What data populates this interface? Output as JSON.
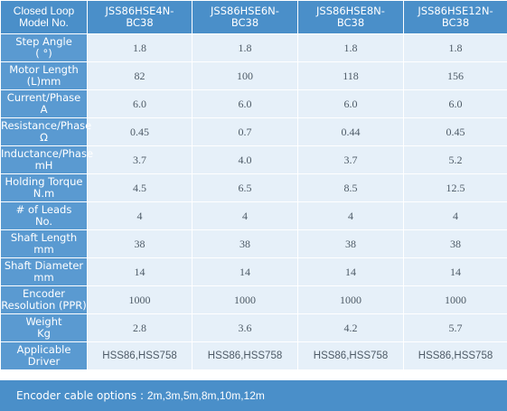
{
  "header": {
    "label_line1": "Closed Loop",
    "label_line2": "Model No.",
    "models": [
      {
        "line1": "JSS86HSE4N-",
        "line2": "BC38"
      },
      {
        "line1": "JSS86HSE6N-",
        "line2": "BC38"
      },
      {
        "line1": "JSS86HSE8N-",
        "line2": "BC38"
      },
      {
        "line1": "JSS86HSE12N-",
        "line2": "BC38"
      }
    ]
  },
  "rows": [
    {
      "label1": "Step Angle",
      "label2": "(     °)",
      "values": [
        "1.8",
        "1.8",
        "1.8",
        "1.8"
      ]
    },
    {
      "label1": "Motor Length",
      "label2": "(L)mm",
      "values": [
        "82",
        "100",
        "118",
        "156"
      ]
    },
    {
      "label1": "Current/Phase",
      "label2": "A",
      "values": [
        "6.0",
        "6.0",
        "6.0",
        "6.0"
      ]
    },
    {
      "label1": "Resistance/Phase",
      "label2": "Ω",
      "values": [
        "0.45",
        "0.7",
        "0.44",
        "0.45"
      ]
    },
    {
      "label1": "Inductance/Phase",
      "label2": "mH",
      "values": [
        "3.7",
        "4.0",
        "3.7",
        "5.2"
      ]
    },
    {
      "label1": "Holding Torque",
      "label2": "N.m",
      "values": [
        "4.5",
        "6.5",
        "8.5",
        "12.5"
      ]
    },
    {
      "label1": "# of Leads",
      "label2": "No.",
      "values": [
        "4",
        "4",
        "4",
        "4"
      ]
    },
    {
      "label1": "Shaft Length",
      "label2": "mm",
      "values": [
        "38",
        "38",
        "38",
        "38"
      ]
    },
    {
      "label1": "Shaft Diameter",
      "label2": "mm",
      "values": [
        "14",
        "14",
        "14",
        "14"
      ]
    },
    {
      "label1": "Encoder",
      "label2": "Resolution (PPR)",
      "values": [
        "1000",
        "1000",
        "1000",
        "1000"
      ]
    },
    {
      "label1": "Weight",
      "label2": "Kg",
      "values": [
        "2.8",
        "3.6",
        "4.2",
        "5.7"
      ]
    },
    {
      "label1": "Applicable",
      "label2": "Driver",
      "values": [
        "HSS86,HSS758",
        "HSS86,HSS758",
        "HSS86,HSS758",
        "HSS86,HSS758"
      ]
    }
  ],
  "footer": {
    "label": "Encoder cable options :",
    "value": "2m,3m,5m,8m,10m,12m"
  },
  "colors": {
    "header_bg": "#4a8fc9",
    "label_bg": "#5a9ad1",
    "cell_bg": "#e6f0f9",
    "cell_text": "#4d5a66"
  }
}
